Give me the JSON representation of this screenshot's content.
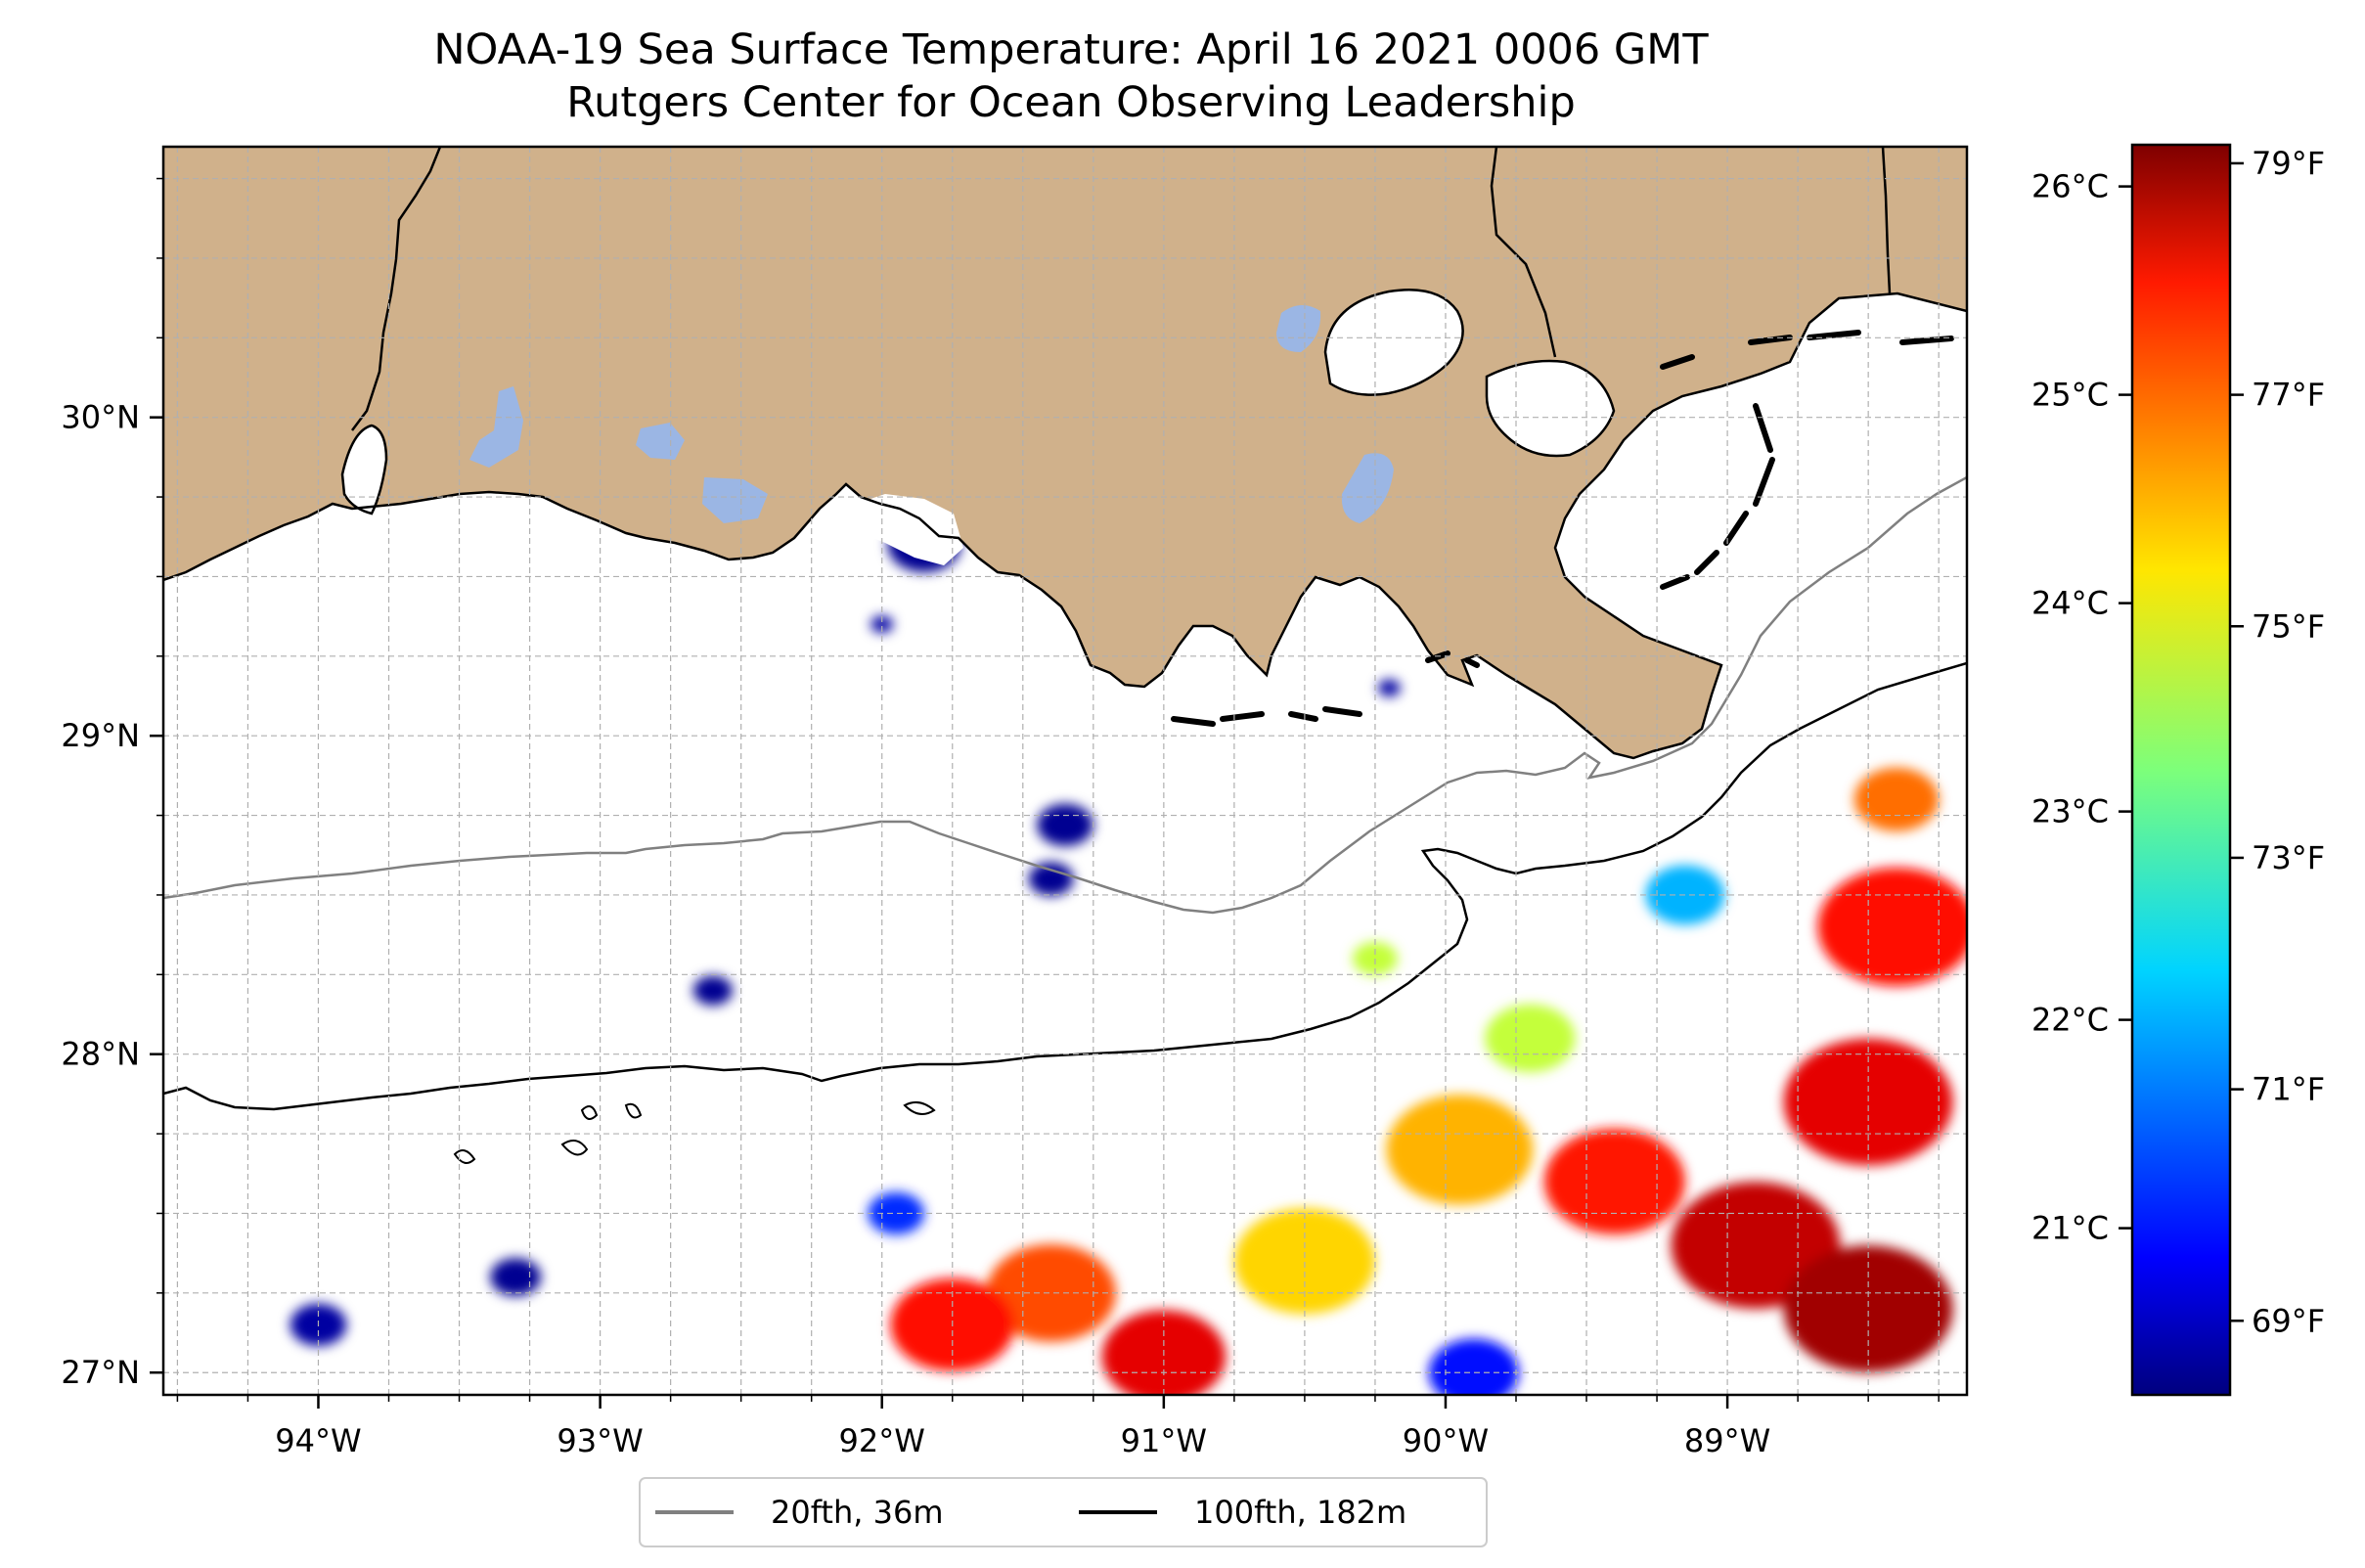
{
  "title": "NOAA-19 Sea Surface Temperature: April 16 2021 0006 GMT",
  "subtitle": "Rutgers Center for Ocean Observing Leadership",
  "colors": {
    "land": "#d0b18b",
    "water_body": "#9bb6e4",
    "coastline": "#000000",
    "isobath_20fth": "#808080",
    "isobath_100fth": "#000000",
    "grid": "#b0b0b0"
  },
  "chart_data": {
    "type": "heatmap",
    "colormap": "jet",
    "grid": true,
    "legend_placement": "bottom-center",
    "x_axis": {
      "range": [
        -94.55,
        -88.15
      ],
      "ticks": [
        -94,
        -93,
        -92,
        -91,
        -90,
        -89
      ],
      "tick_labels": [
        "94°W",
        "93°W",
        "92°W",
        "91°W",
        "90°W",
        "89°W"
      ]
    },
    "y_axis": {
      "range": [
        26.93,
        30.85
      ],
      "ticks": [
        27,
        28,
        29,
        30
      ],
      "tick_labels": [
        "27°N",
        "28°N",
        "29°N",
        "30°N"
      ]
    },
    "colorbar": {
      "range_c": [
        20.2,
        26.2
      ],
      "celsius_ticks": [
        21,
        22,
        23,
        24,
        25,
        26
      ],
      "celsius_labels": [
        "21°C",
        "22°C",
        "23°C",
        "24°C",
        "25°C",
        "26°C"
      ],
      "fahrenheit_ticks": [
        69,
        71,
        73,
        75,
        77,
        79
      ],
      "fahrenheit_labels": [
        "69°F",
        "71°F",
        "73°F",
        "75°F",
        "77°F",
        "79°F"
      ]
    },
    "series": [
      {
        "name": "20fth, 36m",
        "color": "#808080"
      },
      {
        "name": "100fth, 182m",
        "color": "#000000"
      }
    ],
    "sst_patches": [
      {
        "lon": -91.85,
        "lat": 29.6,
        "r": 0.13,
        "t": 20.3
      },
      {
        "lon": -92.0,
        "lat": 29.35,
        "r": 0.04,
        "t": 20.4
      },
      {
        "lon": -91.35,
        "lat": 28.72,
        "r": 0.1,
        "t": 20.3
      },
      {
        "lon": -91.4,
        "lat": 28.55,
        "r": 0.08,
        "t": 20.3
      },
      {
        "lon": -90.2,
        "lat": 29.15,
        "r": 0.04,
        "t": 20.4
      },
      {
        "lon": -92.6,
        "lat": 28.2,
        "r": 0.07,
        "t": 20.3
      },
      {
        "lon": -94.0,
        "lat": 27.15,
        "r": 0.1,
        "t": 20.4
      },
      {
        "lon": -93.3,
        "lat": 27.3,
        "r": 0.09,
        "t": 20.3
      },
      {
        "lon": -91.95,
        "lat": 27.5,
        "r": 0.1,
        "t": 21.2
      },
      {
        "lon": -91.4,
        "lat": 27.25,
        "r": 0.23,
        "t": 25.0
      },
      {
        "lon": -91.75,
        "lat": 27.15,
        "r": 0.22,
        "t": 25.4
      },
      {
        "lon": -91.0,
        "lat": 27.05,
        "r": 0.22,
        "t": 25.6
      },
      {
        "lon": -90.5,
        "lat": 27.35,
        "r": 0.25,
        "t": 24.2
      },
      {
        "lon": -89.95,
        "lat": 27.7,
        "r": 0.26,
        "t": 24.4
      },
      {
        "lon": -89.9,
        "lat": 27.0,
        "r": 0.16,
        "t": 21.0
      },
      {
        "lon": -89.4,
        "lat": 27.6,
        "r": 0.25,
        "t": 25.3
      },
      {
        "lon": -88.9,
        "lat": 27.4,
        "r": 0.3,
        "t": 25.8
      },
      {
        "lon": -88.5,
        "lat": 27.2,
        "r": 0.3,
        "t": 26.0
      },
      {
        "lon": -88.5,
        "lat": 27.85,
        "r": 0.3,
        "t": 25.6
      },
      {
        "lon": -88.4,
        "lat": 28.4,
        "r": 0.28,
        "t": 25.4
      },
      {
        "lon": -88.4,
        "lat": 28.8,
        "r": 0.15,
        "t": 24.8
      },
      {
        "lon": -89.7,
        "lat": 28.05,
        "r": 0.16,
        "t": 23.6
      },
      {
        "lon": -89.15,
        "lat": 28.5,
        "r": 0.14,
        "t": 22.0
      },
      {
        "lon": -90.25,
        "lat": 28.3,
        "r": 0.08,
        "t": 23.6
      }
    ]
  },
  "legend": {
    "items": [
      "20fth, 36m",
      "100fth, 182m"
    ]
  }
}
